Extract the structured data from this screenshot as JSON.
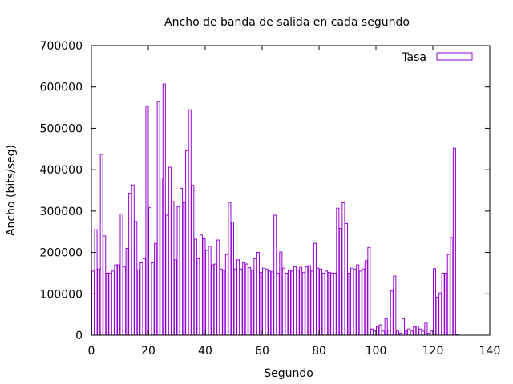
{
  "chart_data": {
    "type": "bar",
    "title": "Ancho de banda de salida en cada segundo",
    "xlabel": "Segundo",
    "ylabel": "Ancho (bits/seg)",
    "xlim": [
      0,
      140
    ],
    "ylim": [
      0,
      700000
    ],
    "xticks": [
      0,
      20,
      40,
      60,
      80,
      100,
      120,
      140
    ],
    "yticks": [
      0,
      100000,
      200000,
      300000,
      400000,
      500000,
      600000,
      700000
    ],
    "grid": false,
    "legend": {
      "placement": "top-right"
    },
    "series": [
      {
        "name": "Tasa",
        "color": "#9400d3",
        "x": [
          0,
          1,
          2,
          3,
          4,
          5,
          6,
          7,
          8,
          9,
          10,
          11,
          12,
          13,
          14,
          15,
          16,
          17,
          18,
          19,
          20,
          21,
          22,
          23,
          24,
          25,
          26,
          27,
          28,
          29,
          30,
          31,
          32,
          33,
          34,
          35,
          36,
          37,
          38,
          39,
          40,
          41,
          42,
          43,
          44,
          45,
          46,
          47,
          48,
          49,
          50,
          51,
          52,
          53,
          54,
          55,
          56,
          57,
          58,
          59,
          60,
          61,
          62,
          63,
          64,
          65,
          66,
          67,
          68,
          69,
          70,
          71,
          72,
          73,
          74,
          75,
          76,
          77,
          78,
          79,
          80,
          81,
          82,
          83,
          84,
          85,
          86,
          87,
          88,
          89,
          90,
          91,
          92,
          93,
          94,
          95,
          96,
          97,
          98,
          99,
          100,
          101,
          102,
          103,
          104,
          105,
          106,
          107,
          108,
          109,
          110,
          111,
          112,
          113,
          114,
          115,
          116,
          117,
          118,
          119,
          120,
          121,
          122,
          123,
          124,
          125,
          126,
          127,
          128,
          129,
          130
        ],
        "values": [
          155000,
          255000,
          160000,
          437000,
          240000,
          150000,
          150000,
          155000,
          170000,
          170000,
          293000,
          165000,
          210000,
          343000,
          363000,
          275000,
          158000,
          175000,
          185000,
          553000,
          308000,
          175000,
          222000,
          565000,
          380000,
          607000,
          290000,
          406000,
          323000,
          182000,
          310000,
          355000,
          320000,
          446000,
          545000,
          362000,
          232000,
          185000,
          242000,
          233000,
          205000,
          215000,
          170000,
          172000,
          230000,
          160000,
          157000,
          195000,
          321000,
          273000,
          160000,
          182000,
          160000,
          175000,
          172000,
          163000,
          157000,
          185000,
          200000,
          152000,
          162000,
          160000,
          155000,
          153000,
          290000,
          150000,
          201000,
          162000,
          150000,
          157000,
          155000,
          165000,
          157000,
          164000,
          152000,
          165000,
          168000,
          155000,
          222000,
          162000,
          160000,
          150000,
          155000,
          152000,
          150000,
          150000,
          307000,
          258000,
          320000,
          270000,
          150000,
          162000,
          160000,
          170000,
          155000,
          160000,
          180000,
          212000,
          15000,
          10000,
          20000,
          25000,
          10000,
          40000,
          12000,
          107000,
          143000,
          10000,
          5000,
          40000,
          10000,
          15000,
          10000,
          20000,
          22000,
          15000,
          10000,
          32000,
          5000,
          10000,
          161000,
          92000,
          102000,
          150000,
          150000,
          195000,
          236000,
          452000,
          2000,
          0,
          0
        ]
      }
    ]
  }
}
